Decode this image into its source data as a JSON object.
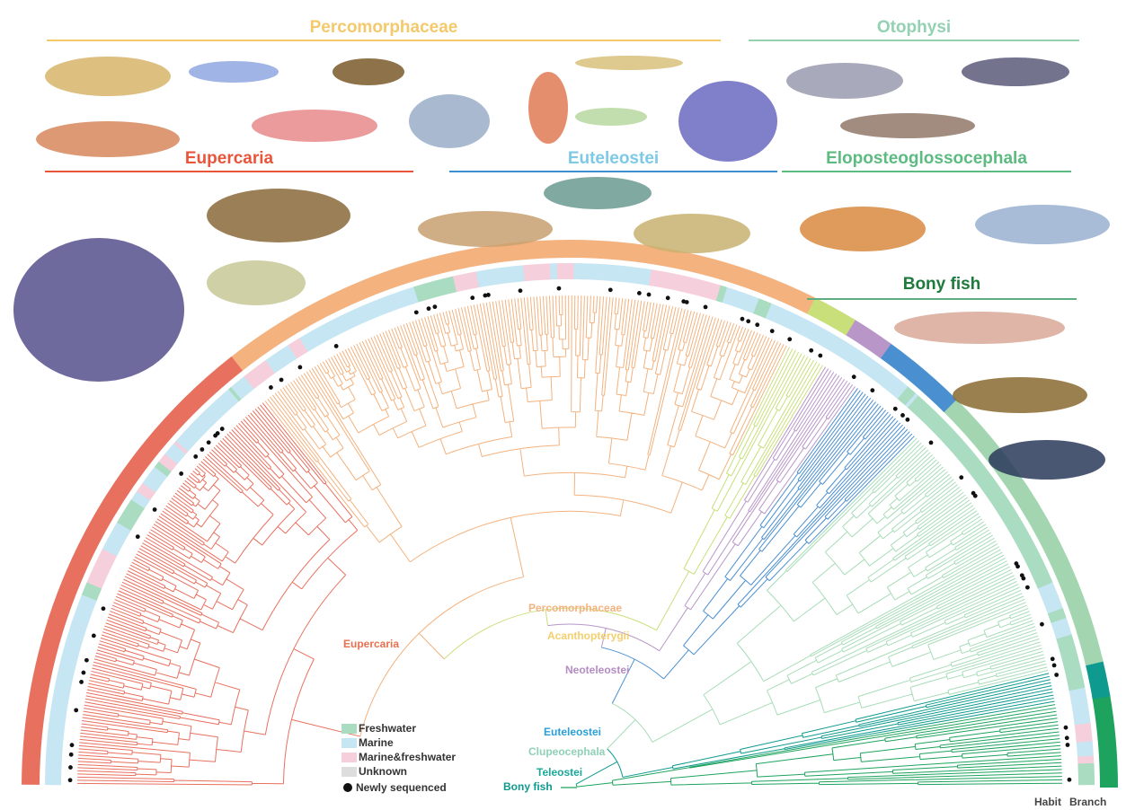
{
  "group_titles": [
    {
      "text": "Percomorphaceae",
      "color": "#f3c96b"
    },
    {
      "text": "Otophysi",
      "color": "#93d1b2"
    },
    {
      "text": "Eupercaria",
      "color": "#e8553a"
    },
    {
      "text": "Euteleostei",
      "color": "#7ec9e6",
      "rule": "#3d8fcf"
    },
    {
      "text": "Eloposteoglossocephala",
      "color": "#5cbb80"
    },
    {
      "text": "Bony fish",
      "color": "#1f7a3d",
      "rule": "#5cae80"
    }
  ],
  "clade_labels": {
    "eupercaria": "Eupercaria",
    "percomorphaceae": "Percomorphaceae",
    "acanthopterygii": "Acanthopterygii",
    "neoteleostei": "Neoteleostei",
    "euteleostei": "Euteleostei",
    "clupeocephala": "Clupeocephala",
    "teleostei": "Teleostei",
    "bony_fish": "Bony fish"
  },
  "clade_colors": {
    "eupercaria": "#e8705f",
    "percomorphaceae": "#f3b27e",
    "acanthopterygii": "#c8df7a",
    "neoteleostei": "#b896c8",
    "euteleostei": "#4a8fd0",
    "clupeocephala": "#a8dcb8",
    "teleostei": "#0e9a8e",
    "bony_fish": "#1ea35e"
  },
  "legend": [
    {
      "label": "Freshwater",
      "color": "#a9dcc0"
    },
    {
      "label": "Marine",
      "color": "#c6e6f3"
    },
    {
      "label": "Marine&freshwater",
      "color": "#f6cfdc"
    },
    {
      "label": "Unknown",
      "color": "#dddddd"
    },
    {
      "label": "Newly sequenced",
      "color": "#111111"
    }
  ],
  "ring_labels": {
    "habit": "Habit",
    "branch": "Branch"
  }
}
